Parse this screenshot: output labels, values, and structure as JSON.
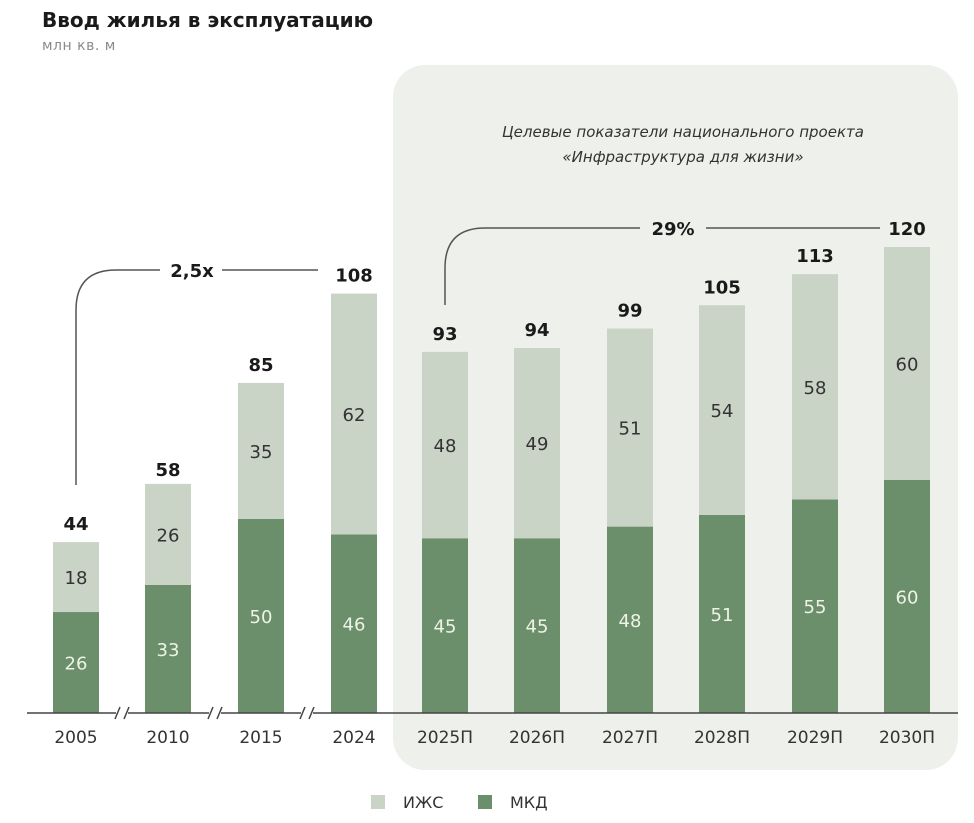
{
  "chart_data": {
    "type": "bar",
    "stacked": true,
    "title": "Ввод жилья в эксплуатацию",
    "subtitle": "млн кв. м",
    "categories": [
      "2005",
      "2010",
      "2015",
      "2024",
      "2025П",
      "2026П",
      "2027П",
      "2028П",
      "2029П",
      "2030П"
    ],
    "series": [
      {
        "name": "МКД",
        "values": [
          26,
          33,
          50,
          46,
          45,
          45,
          48,
          51,
          55,
          60
        ],
        "color": "#6b8f6b"
      },
      {
        "name": "ИЖС",
        "values": [
          18,
          26,
          35,
          62,
          48,
          49,
          51,
          54,
          58,
          60
        ],
        "color": "#c9d3c6"
      }
    ],
    "totals": [
      44,
      58,
      85,
      108,
      93,
      94,
      99,
      105,
      113,
      120
    ],
    "axis_breaks_after": [
      "2005",
      "2010",
      "2015"
    ],
    "highlight_panel": {
      "categories": [
        "2025П",
        "2026П",
        "2027П",
        "2028П",
        "2029П",
        "2030П"
      ],
      "caption_line1": "Целевые показатели национального проекта",
      "caption_line2": "«Инфраструктура для жизни»",
      "color": "#eef0ec"
    },
    "annotations": [
      {
        "label": "2,5x",
        "from": "2005",
        "to": "2024"
      },
      {
        "label": "29%",
        "from": "2025П",
        "to": "2030П"
      }
    ],
    "legend_position": "bottom",
    "grid": false,
    "ylim": [
      0,
      120
    ]
  }
}
